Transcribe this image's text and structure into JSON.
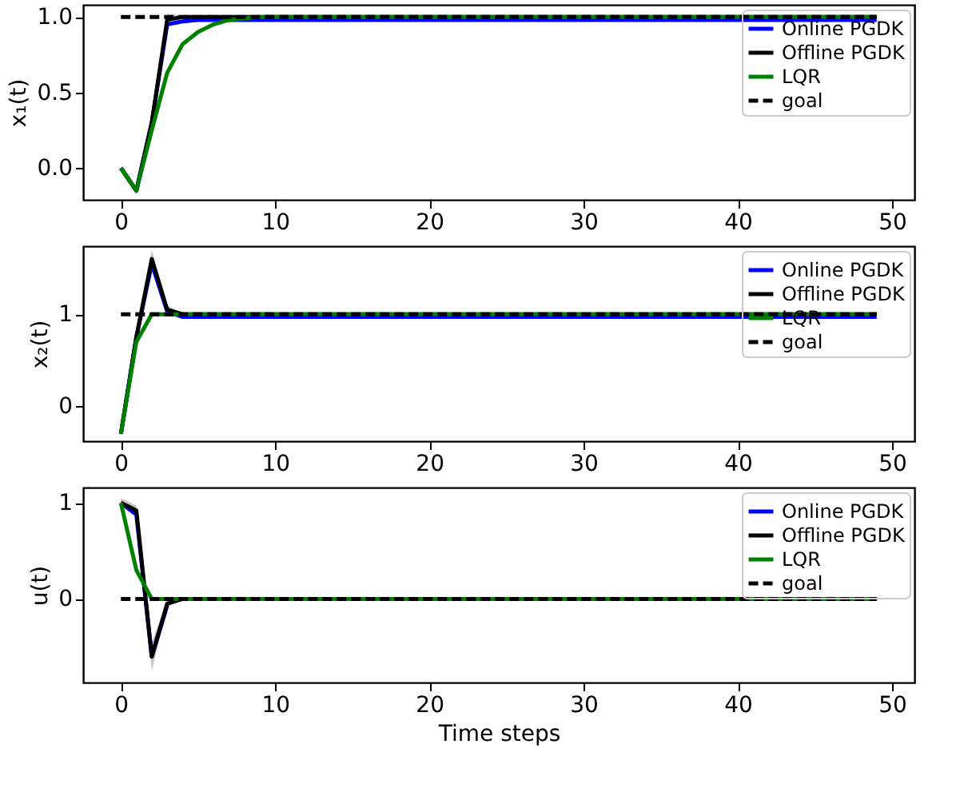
{
  "chart_data": [
    {
      "type": "line",
      "ylabel": "x₁(t)",
      "legend": "top right",
      "grid": false,
      "xlim": [
        -2.45,
        51.45
      ],
      "xticks": [
        0,
        10,
        20,
        30,
        40,
        50
      ],
      "ylim": [
        -0.21,
        1.08
      ],
      "yticks": [
        {
          "value": 0,
          "label": "0.0"
        },
        {
          "value": 0.5,
          "label": "0.5"
        },
        {
          "value": 1,
          "label": "1.0"
        }
      ],
      "x": [
        0,
        1,
        2,
        3,
        4,
        5,
        6,
        7,
        8,
        9,
        10,
        11,
        12,
        13,
        14,
        15,
        16,
        17,
        18,
        19,
        20,
        21,
        22,
        23,
        24,
        25,
        26,
        27,
        28,
        29,
        30,
        31,
        32,
        33,
        34,
        35,
        36,
        37,
        38,
        39,
        40,
        41,
        42,
        43,
        44,
        45,
        46,
        47,
        48,
        49
      ],
      "series": [
        {
          "name": "Online PGDK",
          "color": "#0000ff",
          "line_style": "solid",
          "values": [
            0,
            -0.15,
            0.3,
            0.95,
            0.97,
            0.98,
            0.98,
            0.98,
            0.98,
            0.98,
            0.98,
            0.98,
            0.98,
            0.98,
            0.98,
            0.98,
            0.98,
            0.98,
            0.98,
            0.98,
            0.98,
            0.98,
            0.98,
            0.98,
            0.98,
            0.98,
            0.98,
            0.98,
            0.98,
            0.98,
            0.98,
            0.98,
            0.98,
            0.98,
            0.98,
            0.98,
            0.98,
            0.98,
            0.98,
            0.98,
            0.98,
            0.98,
            0.98,
            0.98,
            0.98,
            0.98,
            0.98,
            0.98,
            0.98,
            0.98
          ]
        },
        {
          "name": "Offline PGDK",
          "color": "#000000",
          "line_style": "solid",
          "values": [
            0,
            -0.15,
            0.3,
            0.98,
            1,
            1,
            1,
            1,
            1,
            1,
            1,
            1,
            1,
            1,
            1,
            1,
            1,
            1,
            1,
            1,
            1,
            1,
            1,
            1,
            1,
            1,
            1,
            1,
            1,
            1,
            1,
            1,
            1,
            1,
            1,
            1,
            1,
            1,
            1,
            1,
            1,
            1,
            1,
            1,
            1,
            1,
            1,
            1,
            1,
            1
          ],
          "lower": [
            0,
            -0.15,
            0.28,
            0.94,
            0.99,
            1,
            1,
            1,
            1,
            1,
            1,
            1,
            1,
            1,
            1,
            1,
            1,
            1,
            1,
            1,
            1,
            1,
            1,
            1,
            1,
            1,
            1,
            1,
            1,
            1,
            1,
            1,
            1,
            1,
            1,
            1,
            1,
            1,
            1,
            1,
            1,
            1,
            1,
            1,
            1,
            1,
            1,
            1,
            1,
            1
          ],
          "upper": [
            0,
            -0.15,
            0.32,
            1.02,
            1.01,
            1,
            1,
            1,
            1,
            1,
            1,
            1,
            1,
            1,
            1,
            1,
            1,
            1,
            1,
            1,
            1,
            1,
            1,
            1,
            1,
            1,
            1,
            1,
            1,
            1,
            1,
            1,
            1,
            1,
            1,
            1,
            1,
            1,
            1,
            1,
            1,
            1,
            1,
            1,
            1,
            1,
            1,
            1,
            1,
            1
          ]
        },
        {
          "name": "LQR",
          "color": "#008000",
          "line_style": "solid",
          "values": [
            0,
            -0.15,
            0.25,
            0.63,
            0.82,
            0.9,
            0.95,
            0.98,
            0.99,
            1,
            1,
            1,
            1,
            1,
            1,
            1,
            1,
            1,
            1,
            1,
            1,
            1,
            1,
            1,
            1,
            1,
            1,
            1,
            1,
            1,
            1,
            1,
            1,
            1,
            1,
            1,
            1,
            1,
            1,
            1,
            1,
            1,
            1,
            1,
            1,
            1,
            1,
            1,
            1,
            1
          ]
        },
        {
          "name": "goal",
          "color": "#000000",
          "line_style": "dashed",
          "values": [
            1,
            1,
            1,
            1,
            1,
            1,
            1,
            1,
            1,
            1,
            1,
            1,
            1,
            1,
            1,
            1,
            1,
            1,
            1,
            1,
            1,
            1,
            1,
            1,
            1,
            1,
            1,
            1,
            1,
            1,
            1,
            1,
            1,
            1,
            1,
            1,
            1,
            1,
            1,
            1,
            1,
            1,
            1,
            1,
            1,
            1,
            1,
            1,
            1,
            1
          ]
        }
      ]
    },
    {
      "type": "line",
      "ylabel": "x₂(t)",
      "legend": "top right",
      "grid": false,
      "xlim": [
        -2.45,
        51.45
      ],
      "xticks": [
        0,
        10,
        20,
        30,
        40,
        50
      ],
      "ylim": [
        -0.38,
        1.74
      ],
      "yticks": [
        0,
        1
      ],
      "x": [
        0,
        1,
        2,
        3,
        4,
        5,
        6,
        7,
        8,
        9,
        10,
        11,
        12,
        13,
        14,
        15,
        16,
        17,
        18,
        19,
        20,
        21,
        22,
        23,
        24,
        25,
        26,
        27,
        28,
        29,
        30,
        31,
        32,
        33,
        34,
        35,
        36,
        37,
        38,
        39,
        40,
        41,
        42,
        43,
        44,
        45,
        46,
        47,
        48,
        49
      ],
      "series": [
        {
          "name": "Online PGDK",
          "color": "#0000ff",
          "line_style": "solid",
          "values": [
            -0.3,
            0.75,
            1.55,
            1.03,
            0.97,
            0.97,
            0.97,
            0.97,
            0.97,
            0.97,
            0.97,
            0.97,
            0.97,
            0.97,
            0.97,
            0.97,
            0.97,
            0.97,
            0.97,
            0.97,
            0.97,
            0.97,
            0.97,
            0.97,
            0.97,
            0.97,
            0.97,
            0.97,
            0.97,
            0.97,
            0.97,
            0.97,
            0.97,
            0.97,
            0.97,
            0.97,
            0.97,
            0.97,
            0.97,
            0.97,
            0.97,
            0.97,
            0.97,
            0.97,
            0.97,
            0.97,
            0.97,
            0.97,
            0.97,
            0.97
          ]
        },
        {
          "name": "Offline PGDK",
          "color": "#000000",
          "line_style": "solid",
          "values": [
            -0.3,
            0.75,
            1.6,
            1.05,
            1,
            1,
            1,
            1,
            1,
            1,
            1,
            1,
            1,
            1,
            1,
            1,
            1,
            1,
            1,
            1,
            1,
            1,
            1,
            1,
            1,
            1,
            1,
            1,
            1,
            1,
            1,
            1,
            1,
            1,
            1,
            1,
            1,
            1,
            1,
            1,
            1,
            1,
            1,
            1,
            1,
            1,
            1,
            1,
            1,
            1
          ],
          "lower": [
            -0.3,
            0.72,
            1.5,
            1,
            1,
            1,
            1,
            1,
            1,
            1,
            1,
            1,
            1,
            1,
            1,
            1,
            1,
            1,
            1,
            1,
            1,
            1,
            1,
            1,
            1,
            1,
            1,
            1,
            1,
            1,
            1,
            1,
            1,
            1,
            1,
            1,
            1,
            1,
            1,
            1,
            1,
            1,
            1,
            1,
            1,
            1,
            1,
            1,
            1,
            1
          ],
          "upper": [
            -0.3,
            0.78,
            1.7,
            1.1,
            1,
            1,
            1,
            1,
            1,
            1,
            1,
            1,
            1,
            1,
            1,
            1,
            1,
            1,
            1,
            1,
            1,
            1,
            1,
            1,
            1,
            1,
            1,
            1,
            1,
            1,
            1,
            1,
            1,
            1,
            1,
            1,
            1,
            1,
            1,
            1,
            1,
            1,
            1,
            1,
            1,
            1,
            1,
            1,
            1,
            1
          ]
        },
        {
          "name": "LQR",
          "color": "#008000",
          "line_style": "solid",
          "values": [
            -0.3,
            0.7,
            1,
            1,
            1,
            1,
            1,
            1,
            1,
            1,
            1,
            1,
            1,
            1,
            1,
            1,
            1,
            1,
            1,
            1,
            1,
            1,
            1,
            1,
            1,
            1,
            1,
            1,
            1,
            1,
            1,
            1,
            1,
            1,
            1,
            1,
            1,
            1,
            1,
            1,
            1,
            1,
            1,
            1,
            1,
            1,
            1,
            1,
            1,
            1
          ]
        },
        {
          "name": "goal",
          "color": "#000000",
          "line_style": "dashed",
          "values": [
            1,
            1,
            1,
            1,
            1,
            1,
            1,
            1,
            1,
            1,
            1,
            1,
            1,
            1,
            1,
            1,
            1,
            1,
            1,
            1,
            1,
            1,
            1,
            1,
            1,
            1,
            1,
            1,
            1,
            1,
            1,
            1,
            1,
            1,
            1,
            1,
            1,
            1,
            1,
            1,
            1,
            1,
            1,
            1,
            1,
            1,
            1,
            1,
            1,
            1
          ]
        }
      ]
    },
    {
      "type": "line",
      "ylabel": "u(t)",
      "xlabel": "Time steps",
      "legend": "top right",
      "grid": false,
      "xlim": [
        -2.45,
        51.45
      ],
      "xticks": [
        0,
        10,
        20,
        30,
        40,
        50
      ],
      "ylim": [
        -0.87,
        1.16
      ],
      "yticks": [
        0,
        1
      ],
      "x": [
        0,
        1,
        2,
        3,
        4,
        5,
        6,
        7,
        8,
        9,
        10,
        11,
        12,
        13,
        14,
        15,
        16,
        17,
        18,
        19,
        20,
        21,
        22,
        23,
        24,
        25,
        26,
        27,
        28,
        29,
        30,
        31,
        32,
        33,
        34,
        35,
        36,
        37,
        38,
        39,
        40,
        41,
        42,
        43,
        44,
        45,
        46,
        47,
        48,
        49
      ],
      "series": [
        {
          "name": "Online PGDK",
          "color": "#0000ff",
          "line_style": "solid",
          "values": [
            1,
            0.88,
            -0.6,
            -0.07,
            null,
            null,
            null,
            null,
            null,
            null,
            null,
            null,
            null,
            null,
            null,
            null,
            null,
            null,
            null,
            null,
            null,
            null,
            null,
            null,
            null,
            null,
            null,
            null,
            null,
            null,
            null,
            null,
            null,
            null,
            null,
            null,
            null,
            null,
            null,
            null,
            null,
            null,
            null,
            null,
            null,
            null,
            null,
            null,
            null,
            null
          ]
        },
        {
          "name": "Offline PGDK",
          "color": "#000000",
          "line_style": "solid",
          "values": [
            1,
            0.92,
            -0.6,
            -0.05,
            0,
            0,
            0,
            0,
            0,
            0,
            0,
            0,
            0,
            0,
            0,
            0,
            0,
            0,
            0,
            0,
            0,
            0,
            0,
            0,
            0,
            0,
            0,
            0,
            0,
            0,
            0,
            0,
            0,
            0,
            0,
            0,
            0,
            0,
            0,
            0,
            0,
            0,
            0,
            0,
            0,
            0,
            0,
            0,
            0,
            0
          ],
          "lower": [
            0.97,
            0.85,
            -0.75,
            -0.08,
            0,
            0,
            0,
            0,
            0,
            0,
            0,
            0,
            0,
            0,
            0,
            0,
            0,
            0,
            0,
            0,
            0,
            0,
            0,
            0,
            0,
            0,
            0,
            0,
            0,
            0,
            0,
            0,
            0,
            0,
            0,
            0,
            0,
            0,
            0,
            0,
            0,
            0,
            0,
            0,
            0,
            0,
            0,
            0,
            0,
            0
          ],
          "upper": [
            1.05,
            0.97,
            -0.45,
            -0.02,
            0,
            0,
            0,
            0,
            0,
            0,
            0,
            0,
            0,
            0,
            0,
            0,
            0,
            0,
            0,
            0,
            0,
            0,
            0,
            0,
            0,
            0,
            0,
            0,
            0,
            0,
            0,
            0,
            0,
            0,
            0,
            0,
            0,
            0,
            0,
            0,
            0,
            0,
            0,
            0,
            0,
            0,
            0,
            0,
            0,
            0
          ]
        },
        {
          "name": "LQR",
          "color": "#008000",
          "line_style": "solid",
          "values": [
            1,
            0.3,
            0,
            0,
            0,
            0,
            0,
            0,
            0,
            0,
            0,
            0,
            0,
            0,
            0,
            0,
            0,
            0,
            0,
            0,
            0,
            0,
            0,
            0,
            0,
            0,
            0,
            0,
            0,
            0,
            0,
            0,
            0,
            0,
            0,
            0,
            0,
            0,
            0,
            0,
            0,
            0,
            0,
            0,
            0,
            0,
            0,
            0,
            0,
            0
          ]
        },
        {
          "name": "goal",
          "color": "#000000",
          "line_style": "dashed",
          "values": [
            0,
            0,
            0,
            0,
            0,
            0,
            0,
            0,
            0,
            0,
            0,
            0,
            0,
            0,
            0,
            0,
            0,
            0,
            0,
            0,
            0,
            0,
            0,
            0,
            0,
            0,
            0,
            0,
            0,
            0,
            0,
            0,
            0,
            0,
            0,
            0,
            0,
            0,
            0,
            0,
            0,
            0,
            0,
            0,
            0,
            0,
            0,
            0,
            0,
            0
          ]
        }
      ]
    }
  ]
}
